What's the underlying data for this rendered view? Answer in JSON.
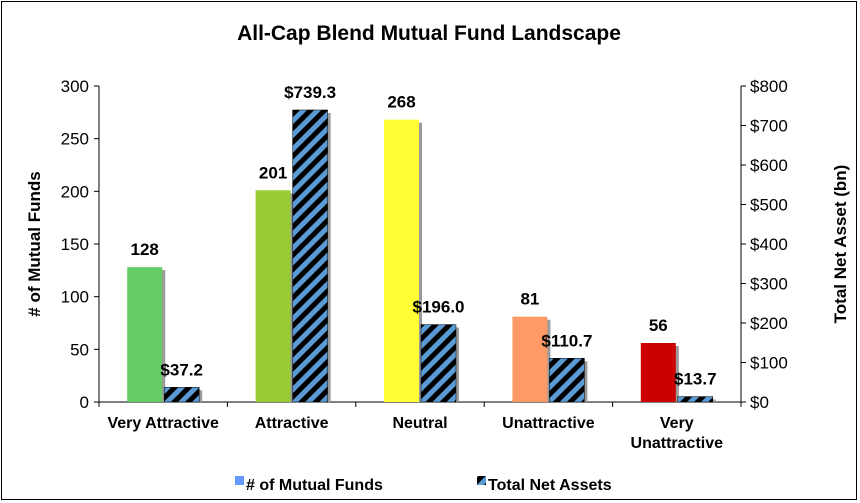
{
  "chart_data": {
    "type": "bar",
    "title": "All-Cap Blend Mutual Fund Landscape",
    "categories": [
      "Very Attractive",
      "Attractive",
      "Neutral",
      "Unattractive",
      "Very Unattractive"
    ],
    "series": [
      {
        "name": "# of Mutual Funds",
        "axis": "left",
        "values": [
          128,
          201,
          268,
          81,
          56
        ],
        "labels": [
          "128",
          "201",
          "268",
          "81",
          "56"
        ],
        "colors": [
          "#66cc66",
          "#99cc33",
          "#ffff33",
          "#ff9966",
          "#cc0000"
        ]
      },
      {
        "name": "Total Net Assets",
        "axis": "right",
        "values": [
          37.2,
          739.3,
          196.0,
          110.7,
          13.7
        ],
        "labels": [
          "$37.2",
          "$739.3",
          "$196.0",
          "$110.7",
          "$13.7"
        ],
        "pattern": "blue-black diagonal stripes"
      }
    ],
    "y_left": {
      "label": "# of Mutual Funds",
      "ylim": [
        0,
        300
      ],
      "ticks": [
        "0",
        "50",
        "100",
        "150",
        "200",
        "250",
        "300"
      ]
    },
    "y_right": {
      "label": "Total Net Asset (bn)",
      "ylim": [
        0,
        800
      ],
      "ticks": [
        "$0",
        "$100",
        "$200",
        "$300",
        "$400",
        "$500",
        "$600",
        "$700",
        "$800"
      ]
    },
    "legend": {
      "position": "bottom",
      "items": [
        {
          "label": "# of Mutual Funds",
          "color": "#6699ff"
        },
        {
          "label": "Total Net Assets",
          "color": "#000000"
        }
      ]
    },
    "grid": false
  }
}
